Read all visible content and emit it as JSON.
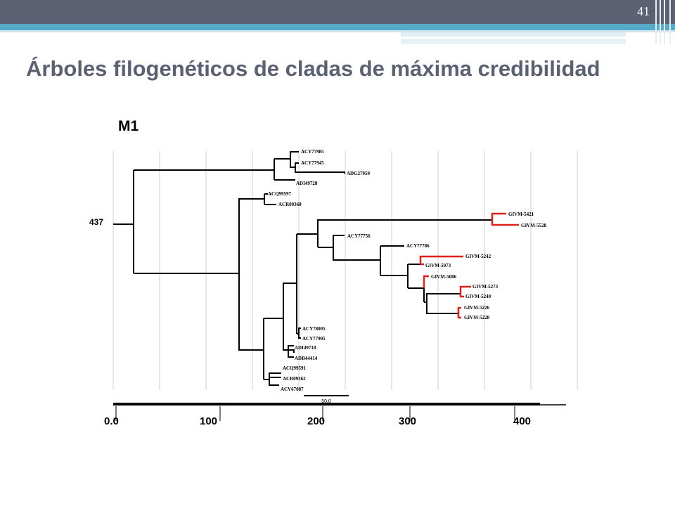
{
  "slide": {
    "page_number": "41",
    "title": "Árboles filogenéticos de cladas de máxima credibilidad"
  },
  "figure": {
    "panel_label": "M1",
    "node_label": "437",
    "scale_bar_label": "50.0",
    "axis_ticks": [
      "0.0",
      "100",
      "200",
      "300",
      "400"
    ],
    "leaves": [
      "ACY77985",
      "ACY77945",
      "ADG27959",
      "ADI49728",
      "ACQ99597",
      "ACR09360",
      "GIVM-5421",
      "GIVM-5528",
      "ACY77756",
      "ACY77786",
      "GIVM-5242",
      "GIVM-5073",
      "GIVM-5086",
      "GIVM-5273",
      "GIVM-5240",
      "GIVM-5226",
      "GIVM-5228",
      "ACY78005",
      "ACY77905",
      "ADI49718",
      "ADB44414",
      "ACQ99591",
      "ACR09362",
      "ACV67087"
    ],
    "colors": {
      "branch": "#000000",
      "highlight_branch": "#e0221a",
      "grid": "#cfcfcf"
    }
  }
}
